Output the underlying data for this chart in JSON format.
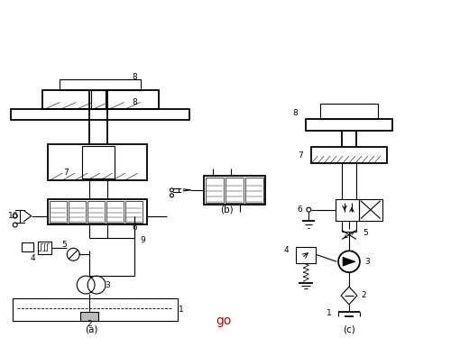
{
  "bg_color": "#ffffff",
  "line_color": "#000000",
  "go_color": "#cc0000",
  "fig_width": 5.0,
  "fig_height": 3.75,
  "dpi": 100,
  "label_a": "(a)",
  "label_b": "(b)",
  "label_c": "(c)",
  "label_go": "go"
}
